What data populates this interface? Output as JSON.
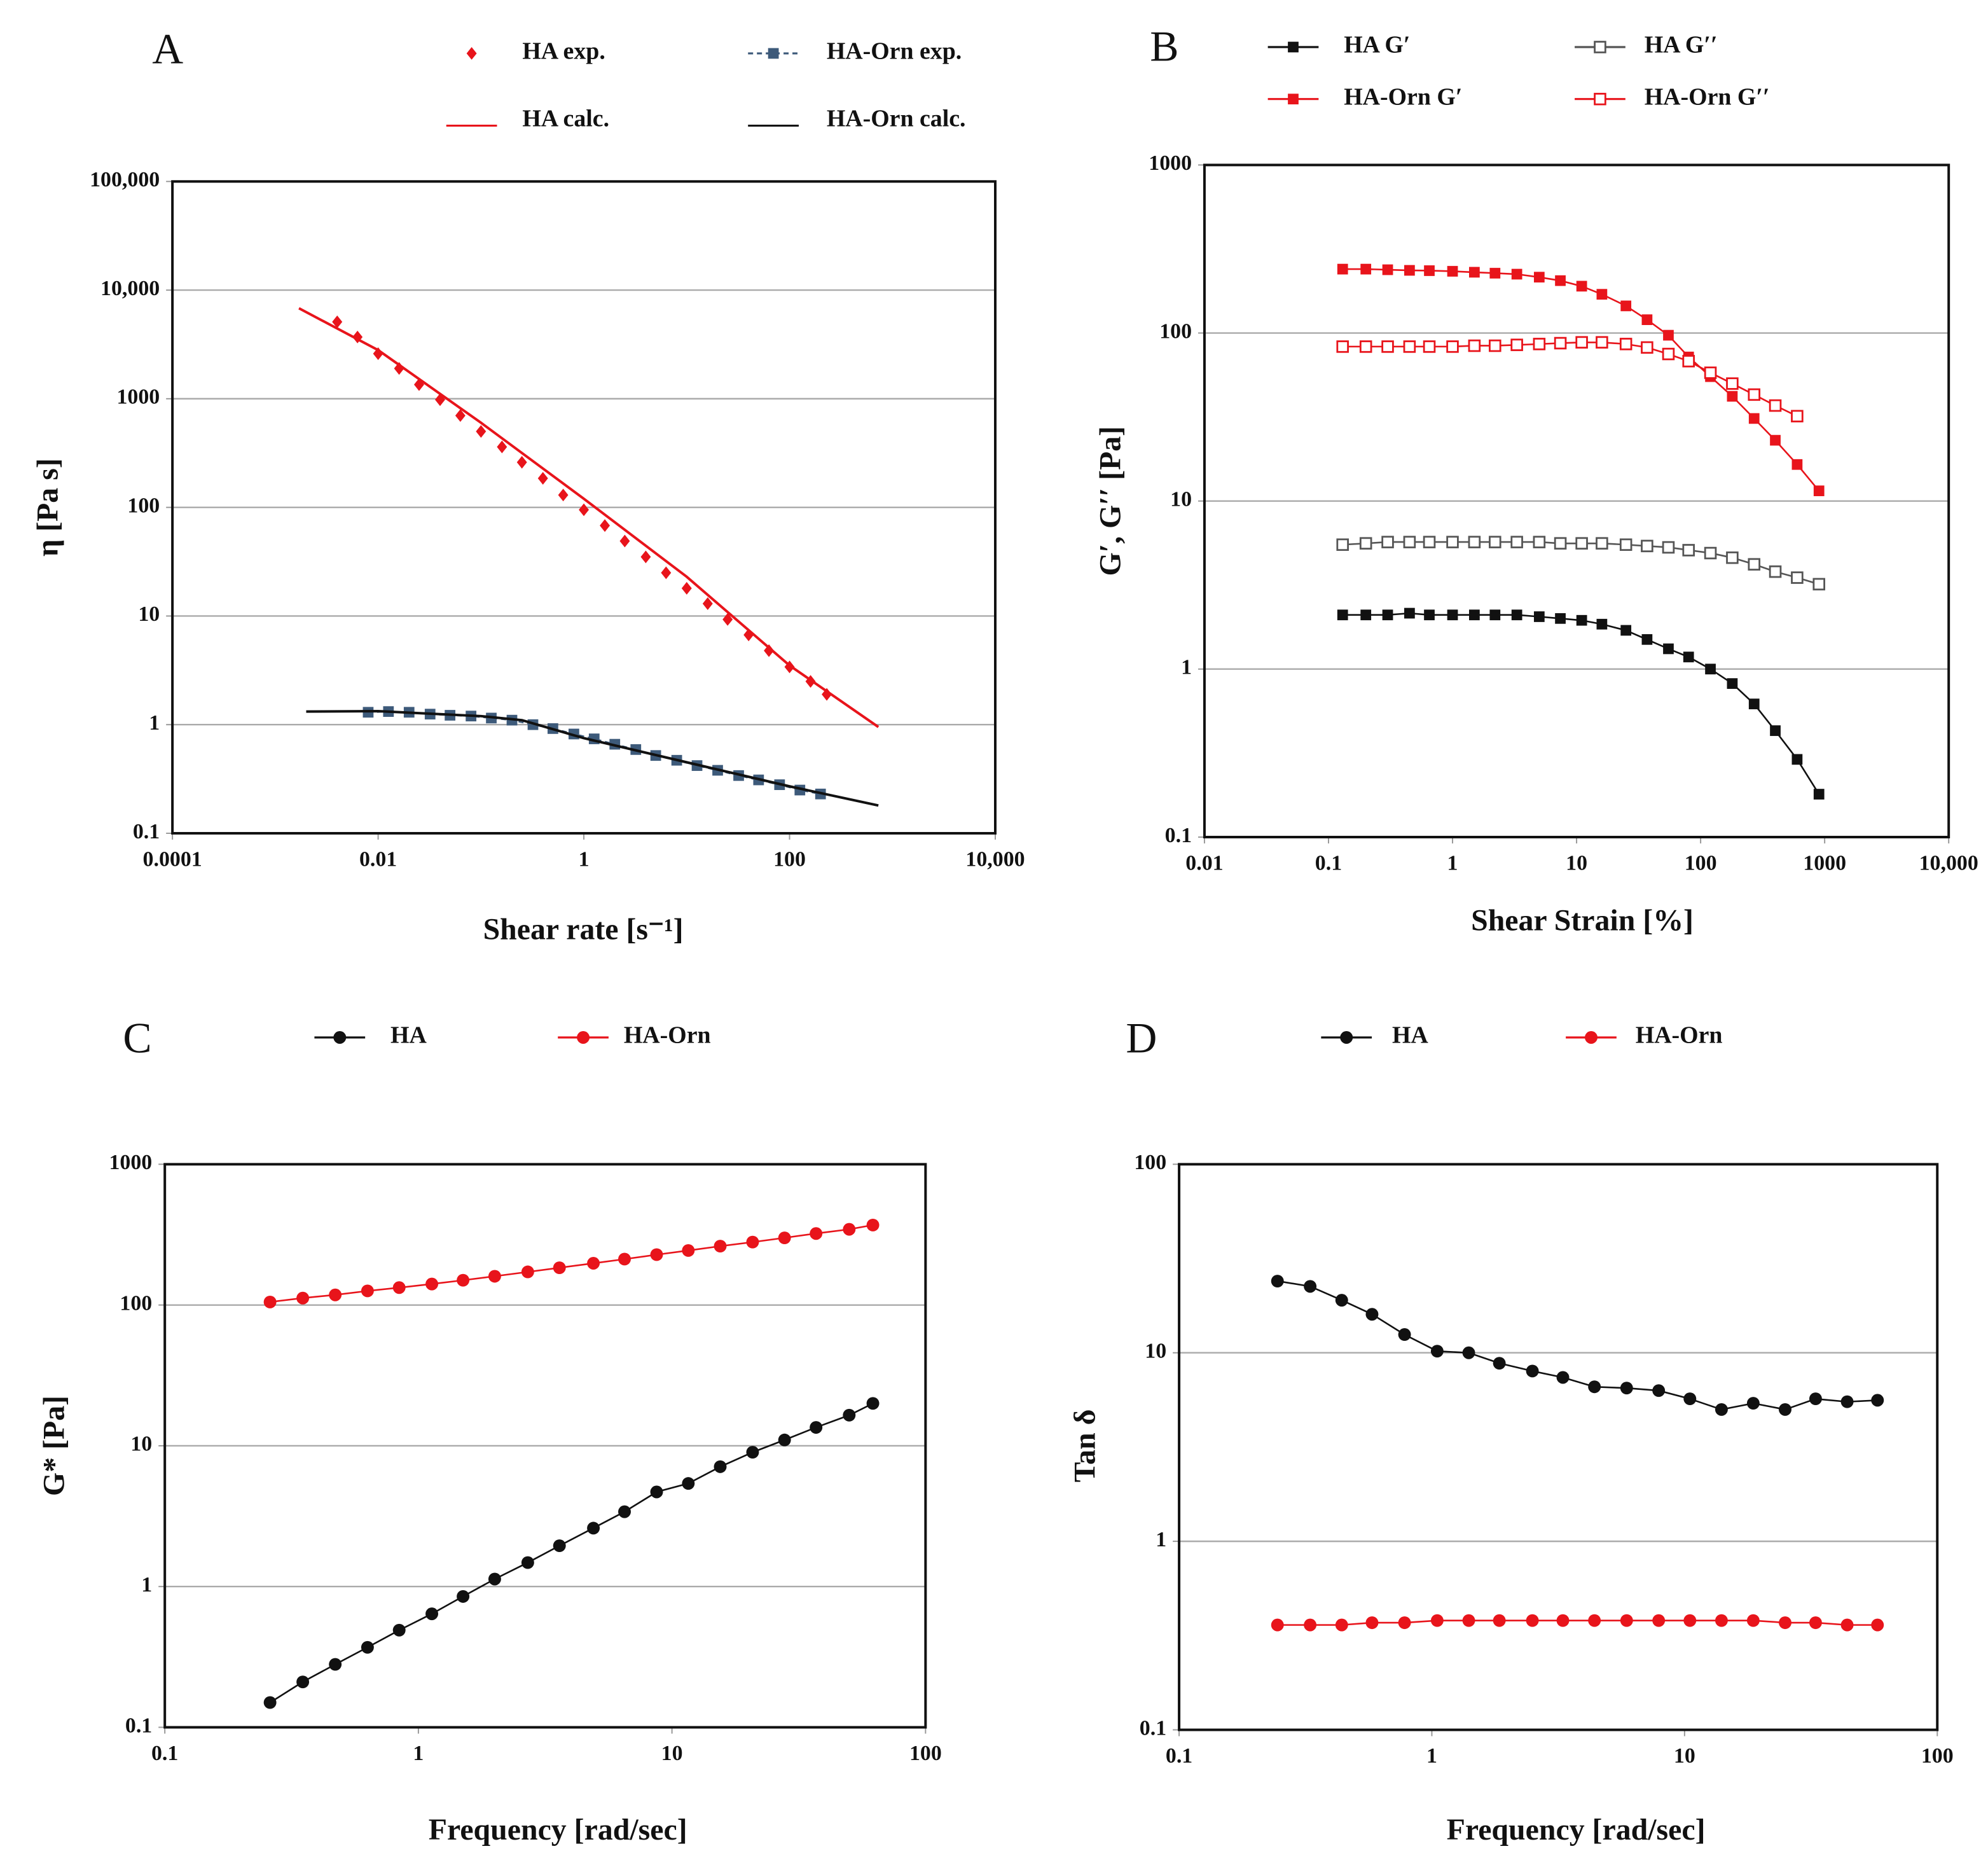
{
  "chart_data": [
    {
      "type": "line",
      "panel_label": "A",
      "x_label": "Shear rate [s⁻¹]",
      "y_label": "η [Pa s]",
      "log_x": true,
      "log_y": true,
      "grid": true,
      "xlim": [
        0.0001,
        10000
      ],
      "ylim": [
        0.1,
        100000
      ],
      "xticks": [
        0.0001,
        0.01,
        1,
        100,
        {
          "value": 10000,
          "label": "10,000"
        }
      ],
      "yticks": [
        0.1,
        1,
        10,
        100,
        1000,
        {
          "value": 10000,
          "label": "10,000"
        },
        {
          "value": 100000,
          "label": "100,000"
        }
      ],
      "series": [
        {
          "name": "HA exp.",
          "color": "#e8141b",
          "marker": "diamond",
          "line": false,
          "x": [
            0.004,
            0.0063,
            0.01,
            0.016,
            0.025,
            0.04,
            0.063,
            0.1,
            0.16,
            0.25,
            0.4,
            0.63,
            1,
            1.6,
            2.5,
            4,
            6.3,
            10,
            16,
            25,
            40,
            63,
            100,
            160,
            230
          ],
          "values": [
            5100,
            3700,
            2600,
            1900,
            1350,
            980,
            700,
            500,
            360,
            260,
            185,
            130,
            95,
            68,
            49,
            35,
            25,
            18,
            13,
            9.3,
            6.7,
            4.8,
            3.4,
            2.5,
            1.9
          ]
        },
        {
          "name": "HA-Orn exp.",
          "color": "#3d5a7a",
          "marker": "square",
          "line": true,
          "dashed": true,
          "x": [
            0.008,
            0.0126,
            0.02,
            0.032,
            0.05,
            0.08,
            0.126,
            0.2,
            0.32,
            0.5,
            0.8,
            1.26,
            2,
            3.2,
            5,
            8,
            12.6,
            20,
            32,
            50,
            80,
            126,
            200
          ],
          "values": [
            1.3,
            1.32,
            1.3,
            1.25,
            1.22,
            1.2,
            1.15,
            1.1,
            1.0,
            0.92,
            0.82,
            0.74,
            0.66,
            0.59,
            0.52,
            0.47,
            0.42,
            0.38,
            0.34,
            0.31,
            0.28,
            0.25,
            0.23
          ]
        },
        {
          "name": "HA calc.",
          "color": "#e8141b",
          "marker": "none",
          "line": true,
          "x": [
            0.0017,
            0.01,
            0.1,
            1,
            10,
            100,
            730
          ],
          "values": [
            6800,
            2800,
            600,
            120,
            23,
            3.5,
            0.95
          ]
        },
        {
          "name": "HA-Orn calc.",
          "color": "#111111",
          "marker": "none",
          "line": true,
          "x": [
            0.002,
            0.01,
            0.1,
            0.25,
            1,
            10,
            100,
            730
          ],
          "values": [
            1.32,
            1.33,
            1.2,
            1.1,
            0.75,
            0.45,
            0.27,
            0.18
          ]
        }
      ]
    },
    {
      "type": "line",
      "panel_label": "B",
      "x_label": "Shear Strain [%]",
      "y_label": "G′, G′′ [Pa]",
      "log_x": true,
      "log_y": true,
      "grid": true,
      "xlim": [
        0.01,
        10000
      ],
      "ylim": [
        0.1,
        1000
      ],
      "xticks": [
        0.01,
        0.1,
        1,
        10,
        100,
        1000,
        {
          "value": 10000,
          "label": "10,000"
        }
      ],
      "yticks": [
        0.1,
        1,
        10,
        100,
        1000
      ],
      "x": [
        0.13,
        0.2,
        0.3,
        0.45,
        0.65,
        1,
        1.5,
        2.2,
        3.3,
        5,
        7.4,
        11,
        16,
        25,
        37,
        55,
        80,
        120,
        180,
        270,
        400,
        600,
        900
      ],
      "series": [
        {
          "name": "HA G′",
          "color": "#111111",
          "marker": "square",
          "line": true,
          "values": [
            2.1,
            2.1,
            2.1,
            2.15,
            2.1,
            2.1,
            2.1,
            2.1,
            2.1,
            2.05,
            2.0,
            1.95,
            1.85,
            1.7,
            1.5,
            1.32,
            1.18,
            1.0,
            0.82,
            0.62,
            0.43,
            0.29,
            0.18
          ]
        },
        {
          "name": "HA G′′",
          "color": "#555555",
          "marker": "square-open",
          "line": true,
          "values": [
            5.5,
            5.6,
            5.7,
            5.7,
            5.7,
            5.7,
            5.7,
            5.7,
            5.7,
            5.7,
            5.6,
            5.6,
            5.6,
            5.5,
            5.4,
            5.3,
            5.1,
            4.9,
            4.6,
            4.2,
            3.8,
            3.5,
            3.2
          ]
        },
        {
          "name": "HA-Orn G′",
          "color": "#e8141b",
          "marker": "square",
          "line": true,
          "values": [
            240,
            240,
            238,
            236,
            235,
            233,
            230,
            227,
            224,
            215,
            205,
            190,
            170,
            145,
            120,
            97,
            72,
            55,
            42,
            31,
            23,
            16.5,
            11.5
          ]
        },
        {
          "name": "HA-Orn G′′",
          "color": "#e8141b",
          "marker": "square-open",
          "line": true,
          "values": [
            83,
            83,
            83,
            83,
            83,
            83,
            84,
            84,
            85,
            86,
            87,
            88,
            88,
            86,
            82,
            75,
            68,
            58,
            50,
            43,
            37,
            32,
            null
          ]
        }
      ]
    },
    {
      "type": "line",
      "panel_label": "C",
      "x_label": "Frequency [rad/sec]",
      "y_label": "G* [Pa]",
      "log_x": true,
      "log_y": true,
      "grid": true,
      "xlim": [
        0.1,
        100
      ],
      "ylim": [
        0.1,
        1000
      ],
      "xticks": [
        0.1,
        1,
        10,
        100
      ],
      "yticks": [
        0.1,
        1,
        10,
        100,
        1000
      ],
      "x": [
        0.26,
        0.35,
        0.47,
        0.63,
        0.84,
        1.13,
        1.5,
        2.0,
        2.7,
        3.6,
        4.9,
        6.5,
        8.7,
        11.6,
        15.5,
        20.8,
        27.8,
        37,
        50,
        62
      ],
      "series": [
        {
          "name": "HA",
          "color": "#111111",
          "marker": "circle",
          "line": true,
          "values": [
            0.15,
            0.21,
            0.28,
            0.37,
            0.49,
            0.64,
            0.85,
            1.13,
            1.48,
            1.95,
            2.6,
            3.4,
            4.7,
            5.4,
            7.1,
            9,
            11,
            13.5,
            16.5,
            20
          ]
        },
        {
          "name": "HA-Orn",
          "color": "#e8141b",
          "marker": "circle",
          "line": true,
          "values": [
            105,
            112,
            118,
            126,
            133,
            141,
            150,
            160,
            172,
            184,
            198,
            212,
            228,
            244,
            262,
            280,
            300,
            322,
            345,
            370
          ]
        }
      ]
    },
    {
      "type": "line",
      "panel_label": "D",
      "x_label": "Frequency [rad/sec]",
      "y_label": "Tan δ",
      "log_x": true,
      "log_y": true,
      "grid": true,
      "xlim": [
        0.1,
        100
      ],
      "ylim": [
        0.1,
        100
      ],
      "xticks": [
        0.1,
        1,
        10,
        100
      ],
      "yticks": [
        0.1,
        1,
        10,
        100
      ],
      "x": [
        0.245,
        0.33,
        0.44,
        0.58,
        0.78,
        1.05,
        1.4,
        1.85,
        2.5,
        3.3,
        4.4,
        5.9,
        7.9,
        10.5,
        14,
        18.7,
        25,
        33,
        44,
        58
      ],
      "series": [
        {
          "name": "HA",
          "color": "#111111",
          "marker": "circle",
          "line": true,
          "values": [
            24,
            22.5,
            19,
            16,
            12.5,
            10.2,
            10,
            8.8,
            8,
            7.4,
            6.6,
            6.5,
            6.3,
            5.7,
            5,
            5.4,
            5.0,
            5.7,
            5.5,
            5.6
          ]
        },
        {
          "name": "HA-Orn",
          "color": "#e8141b",
          "marker": "circle",
          "line": true,
          "values": [
            0.36,
            0.36,
            0.36,
            0.37,
            0.37,
            0.38,
            0.38,
            0.38,
            0.38,
            0.38,
            0.38,
            0.38,
            0.38,
            0.38,
            0.38,
            0.38,
            0.37,
            0.37,
            0.36,
            0.36
          ]
        }
      ]
    }
  ]
}
